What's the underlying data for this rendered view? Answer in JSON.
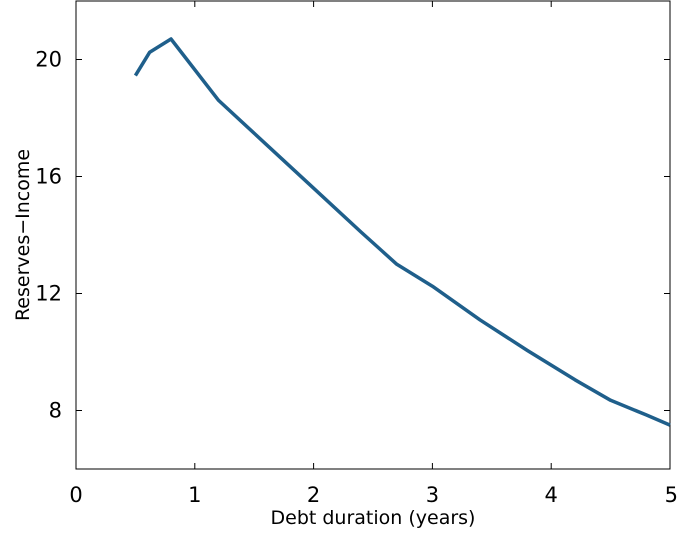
{
  "chart_data": {
    "type": "line",
    "title": "",
    "xlabel": "Debt duration (years)",
    "ylabel": "Reserves−Income",
    "xlim": [
      0,
      5
    ],
    "ylim": [
      6,
      22
    ],
    "xticks": [
      0,
      1,
      2,
      3,
      4,
      5
    ],
    "yticks": [
      8,
      12,
      16,
      20
    ],
    "x_tick_labels": [
      "0",
      "1",
      "2",
      "3",
      "4",
      "5"
    ],
    "y_tick_labels": [
      "8",
      "12",
      "16",
      "20"
    ],
    "grid": false,
    "legend": "none",
    "series": [
      {
        "color": "#1f5f8b",
        "x": [
          0.5,
          0.62,
          0.8,
          1.2,
          1.6,
          2.0,
          2.4,
          2.7,
          3.0,
          3.4,
          3.8,
          4.2,
          4.5,
          4.8,
          5.0
        ],
        "y": [
          19.45,
          20.25,
          20.7,
          18.6,
          17.1,
          15.6,
          14.1,
          13.0,
          12.25,
          11.1,
          10.05,
          9.05,
          8.35,
          7.85,
          7.5
        ]
      }
    ]
  }
}
